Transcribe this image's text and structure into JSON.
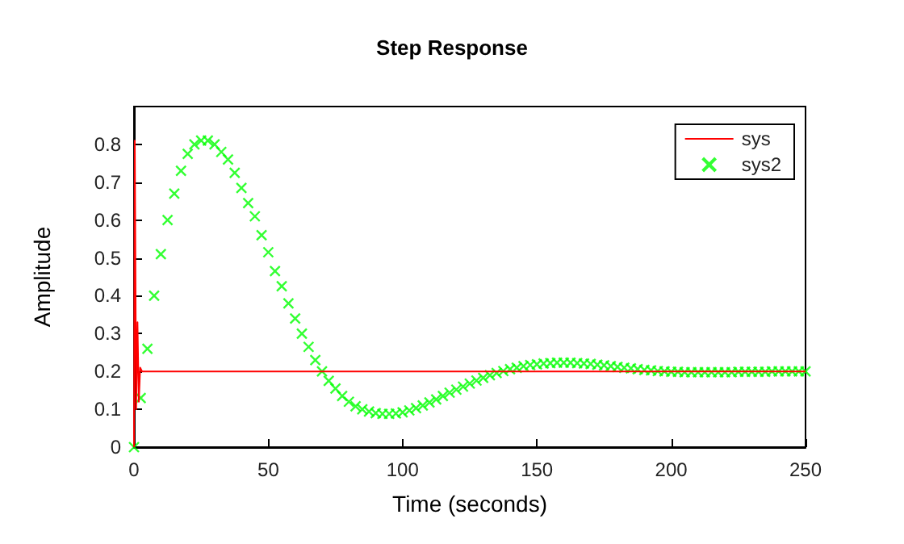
{
  "chart_data": {
    "type": "line",
    "title": "Step Response",
    "xlabel": "Time (seconds)",
    "ylabel": "Amplitude",
    "xlim": [
      0,
      250
    ],
    "xticks": [
      0,
      50,
      100,
      150,
      200,
      250
    ],
    "ylim": [
      0,
      0.9
    ],
    "yticks": [
      0,
      0.1,
      0.2,
      0.3,
      0.4,
      0.5,
      0.6,
      0.7,
      0.8
    ],
    "grid": false,
    "legend": "top right",
    "series": [
      {
        "name": "sys",
        "marker": "none",
        "color": "#ff0000",
        "x": [
          0,
          0.3,
          0.8,
          1.3,
          1.8,
          2.3,
          3,
          250
        ],
        "values": [
          0,
          0.81,
          0.1,
          0.33,
          0.12,
          0.21,
          0.2,
          0.2
        ]
      },
      {
        "name": "sys2",
        "type": "scatter",
        "marker": "cross",
        "color": "#00ff00",
        "x": [
          0,
          2.5,
          5,
          7.5,
          10,
          12.5,
          15,
          17.5,
          20,
          22.5,
          25,
          27.5,
          30,
          32.5,
          35,
          37.5,
          40,
          42.5,
          45,
          47.5,
          50,
          52.5,
          55,
          57.5,
          60,
          62.5,
          65,
          67.5,
          70,
          72.5,
          75,
          77.5,
          80,
          82.5,
          85,
          87.5,
          90,
          92.5,
          95,
          97.5,
          100,
          102.5,
          105,
          107.5,
          110,
          112.5,
          115,
          117.5,
          120,
          122.5,
          125,
          127.5,
          130,
          132.5,
          135,
          137.5,
          140,
          142.5,
          145,
          147.5,
          150,
          152.5,
          155,
          157.5,
          160,
          162.5,
          165,
          167.5,
          170,
          172.5,
          175,
          177.5,
          180,
          182.5,
          185,
          187.5,
          190,
          192.5,
          195,
          197.5,
          200,
          202.5,
          205,
          207.5,
          210,
          212.5,
          215,
          217.5,
          220,
          222.5,
          225,
          227.5,
          230,
          232.5,
          235,
          237.5,
          240,
          242.5,
          245,
          247.5,
          250
        ],
        "values": [
          0,
          0.13,
          0.26,
          0.4,
          0.51,
          0.6,
          0.67,
          0.73,
          0.775,
          0.8,
          0.81,
          0.81,
          0.8,
          0.78,
          0.76,
          0.725,
          0.685,
          0.645,
          0.61,
          0.56,
          0.515,
          0.465,
          0.425,
          0.38,
          0.34,
          0.3,
          0.265,
          0.23,
          0.2,
          0.175,
          0.155,
          0.135,
          0.12,
          0.108,
          0.1,
          0.094,
          0.09,
          0.088,
          0.088,
          0.089,
          0.092,
          0.097,
          0.103,
          0.11,
          0.118,
          0.126,
          0.135,
          0.144,
          0.152,
          0.16,
          0.168,
          0.176,
          0.183,
          0.19,
          0.196,
          0.201,
          0.206,
          0.21,
          0.214,
          0.217,
          0.219,
          0.221,
          0.222,
          0.223,
          0.223,
          0.223,
          0.222,
          0.221,
          0.22,
          0.218,
          0.216,
          0.214,
          0.212,
          0.21,
          0.208,
          0.206,
          0.204,
          0.203,
          0.201,
          0.2,
          0.199,
          0.199,
          0.198,
          0.198,
          0.198,
          0.198,
          0.198,
          0.198,
          0.198,
          0.198,
          0.199,
          0.199,
          0.199,
          0.199,
          0.199,
          0.2,
          0.2,
          0.2,
          0.2,
          0.2,
          0.2
        ]
      }
    ]
  }
}
